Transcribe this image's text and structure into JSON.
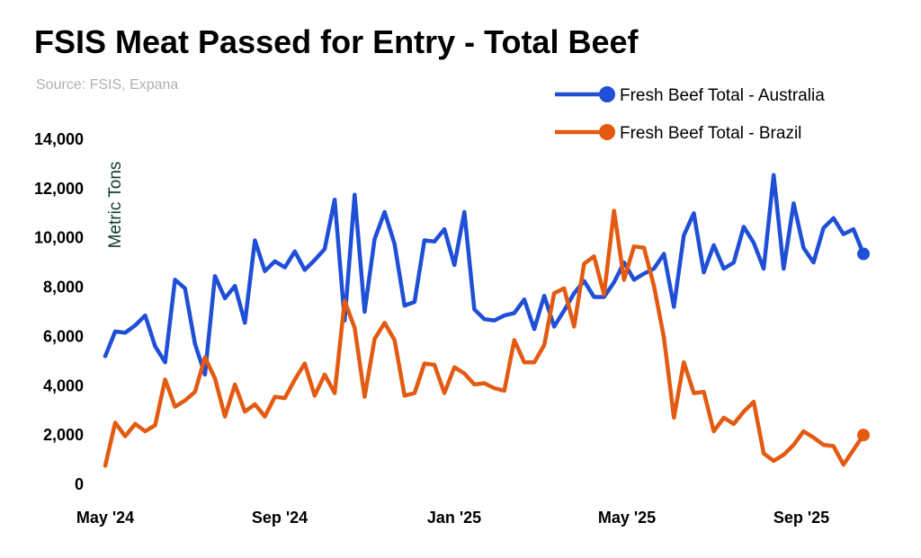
{
  "header": {
    "title": "FSIS Meat Passed for Entry - Total Beef",
    "source": "Source: FSIS, Expana"
  },
  "chart_data": {
    "type": "line",
    "title": "FSIS Meat Passed for Entry - Total Beef",
    "ylabel": "Metric Tons",
    "xlabel": "",
    "ylim": [
      0,
      14000
    ],
    "yticks": [
      0,
      2000,
      4000,
      6000,
      8000,
      10000,
      12000,
      14000
    ],
    "ytick_labels": [
      "0",
      "2,000",
      "4,000",
      "6,000",
      "8,000",
      "10,000",
      "12,000",
      "14,000"
    ],
    "xtick_labels": [
      "May '24",
      "Sep '24",
      "Jan '25",
      "May '25",
      "Sep '25"
    ],
    "grid": false,
    "legend_position": "top-right",
    "series": [
      {
        "name": "Fresh Beef Total - Australia",
        "color": "#1f4fd6",
        "values": [
          5200,
          6200,
          6150,
          6450,
          6850,
          5600,
          4950,
          8300,
          7950,
          5700,
          4450,
          8450,
          7550,
          8050,
          6550,
          9900,
          8650,
          9050,
          8800,
          9450,
          8700,
          9100,
          9550,
          11550,
          6650,
          11750,
          7000,
          9950,
          11050,
          9750,
          7250,
          7400,
          9900,
          9850,
          10350,
          8900,
          11050,
          7100,
          6700,
          6650,
          6850,
          6950,
          7500,
          6300,
          7650,
          6400,
          7050,
          7750,
          8250,
          7600,
          7600,
          8200,
          9000,
          8300,
          8550,
          8750,
          9350,
          7200,
          10100,
          11000,
          8600,
          9700,
          8750,
          9000,
          10450,
          9800,
          8750,
          12550,
          8750,
          11400,
          9600,
          9000,
          10400,
          10800,
          10150,
          10350,
          9350
        ]
      },
      {
        "name": "Fresh Beef Total - Brazil",
        "color": "#e35a11",
        "values": [
          750,
          2500,
          1950,
          2450,
          2150,
          2400,
          4250,
          3150,
          3400,
          3750,
          5150,
          4300,
          2750,
          4050,
          2950,
          3250,
          2750,
          3550,
          3500,
          4250,
          4900,
          3600,
          4450,
          3700,
          7450,
          6350,
          3550,
          5900,
          6550,
          5850,
          3600,
          3700,
          4900,
          4850,
          3700,
          4750,
          4500,
          4050,
          4100,
          3900,
          3800,
          5850,
          4950,
          4950,
          5650,
          7750,
          7950,
          6400,
          8950,
          9250,
          7700,
          11100,
          8300,
          9650,
          9600,
          8050,
          5950,
          2700,
          4950,
          3700,
          3750,
          2150,
          2700,
          2450,
          2950,
          3350,
          1250,
          950,
          1200,
          1600,
          2150,
          1900,
          1600,
          1550,
          800,
          1400,
          2000
        ]
      }
    ]
  }
}
